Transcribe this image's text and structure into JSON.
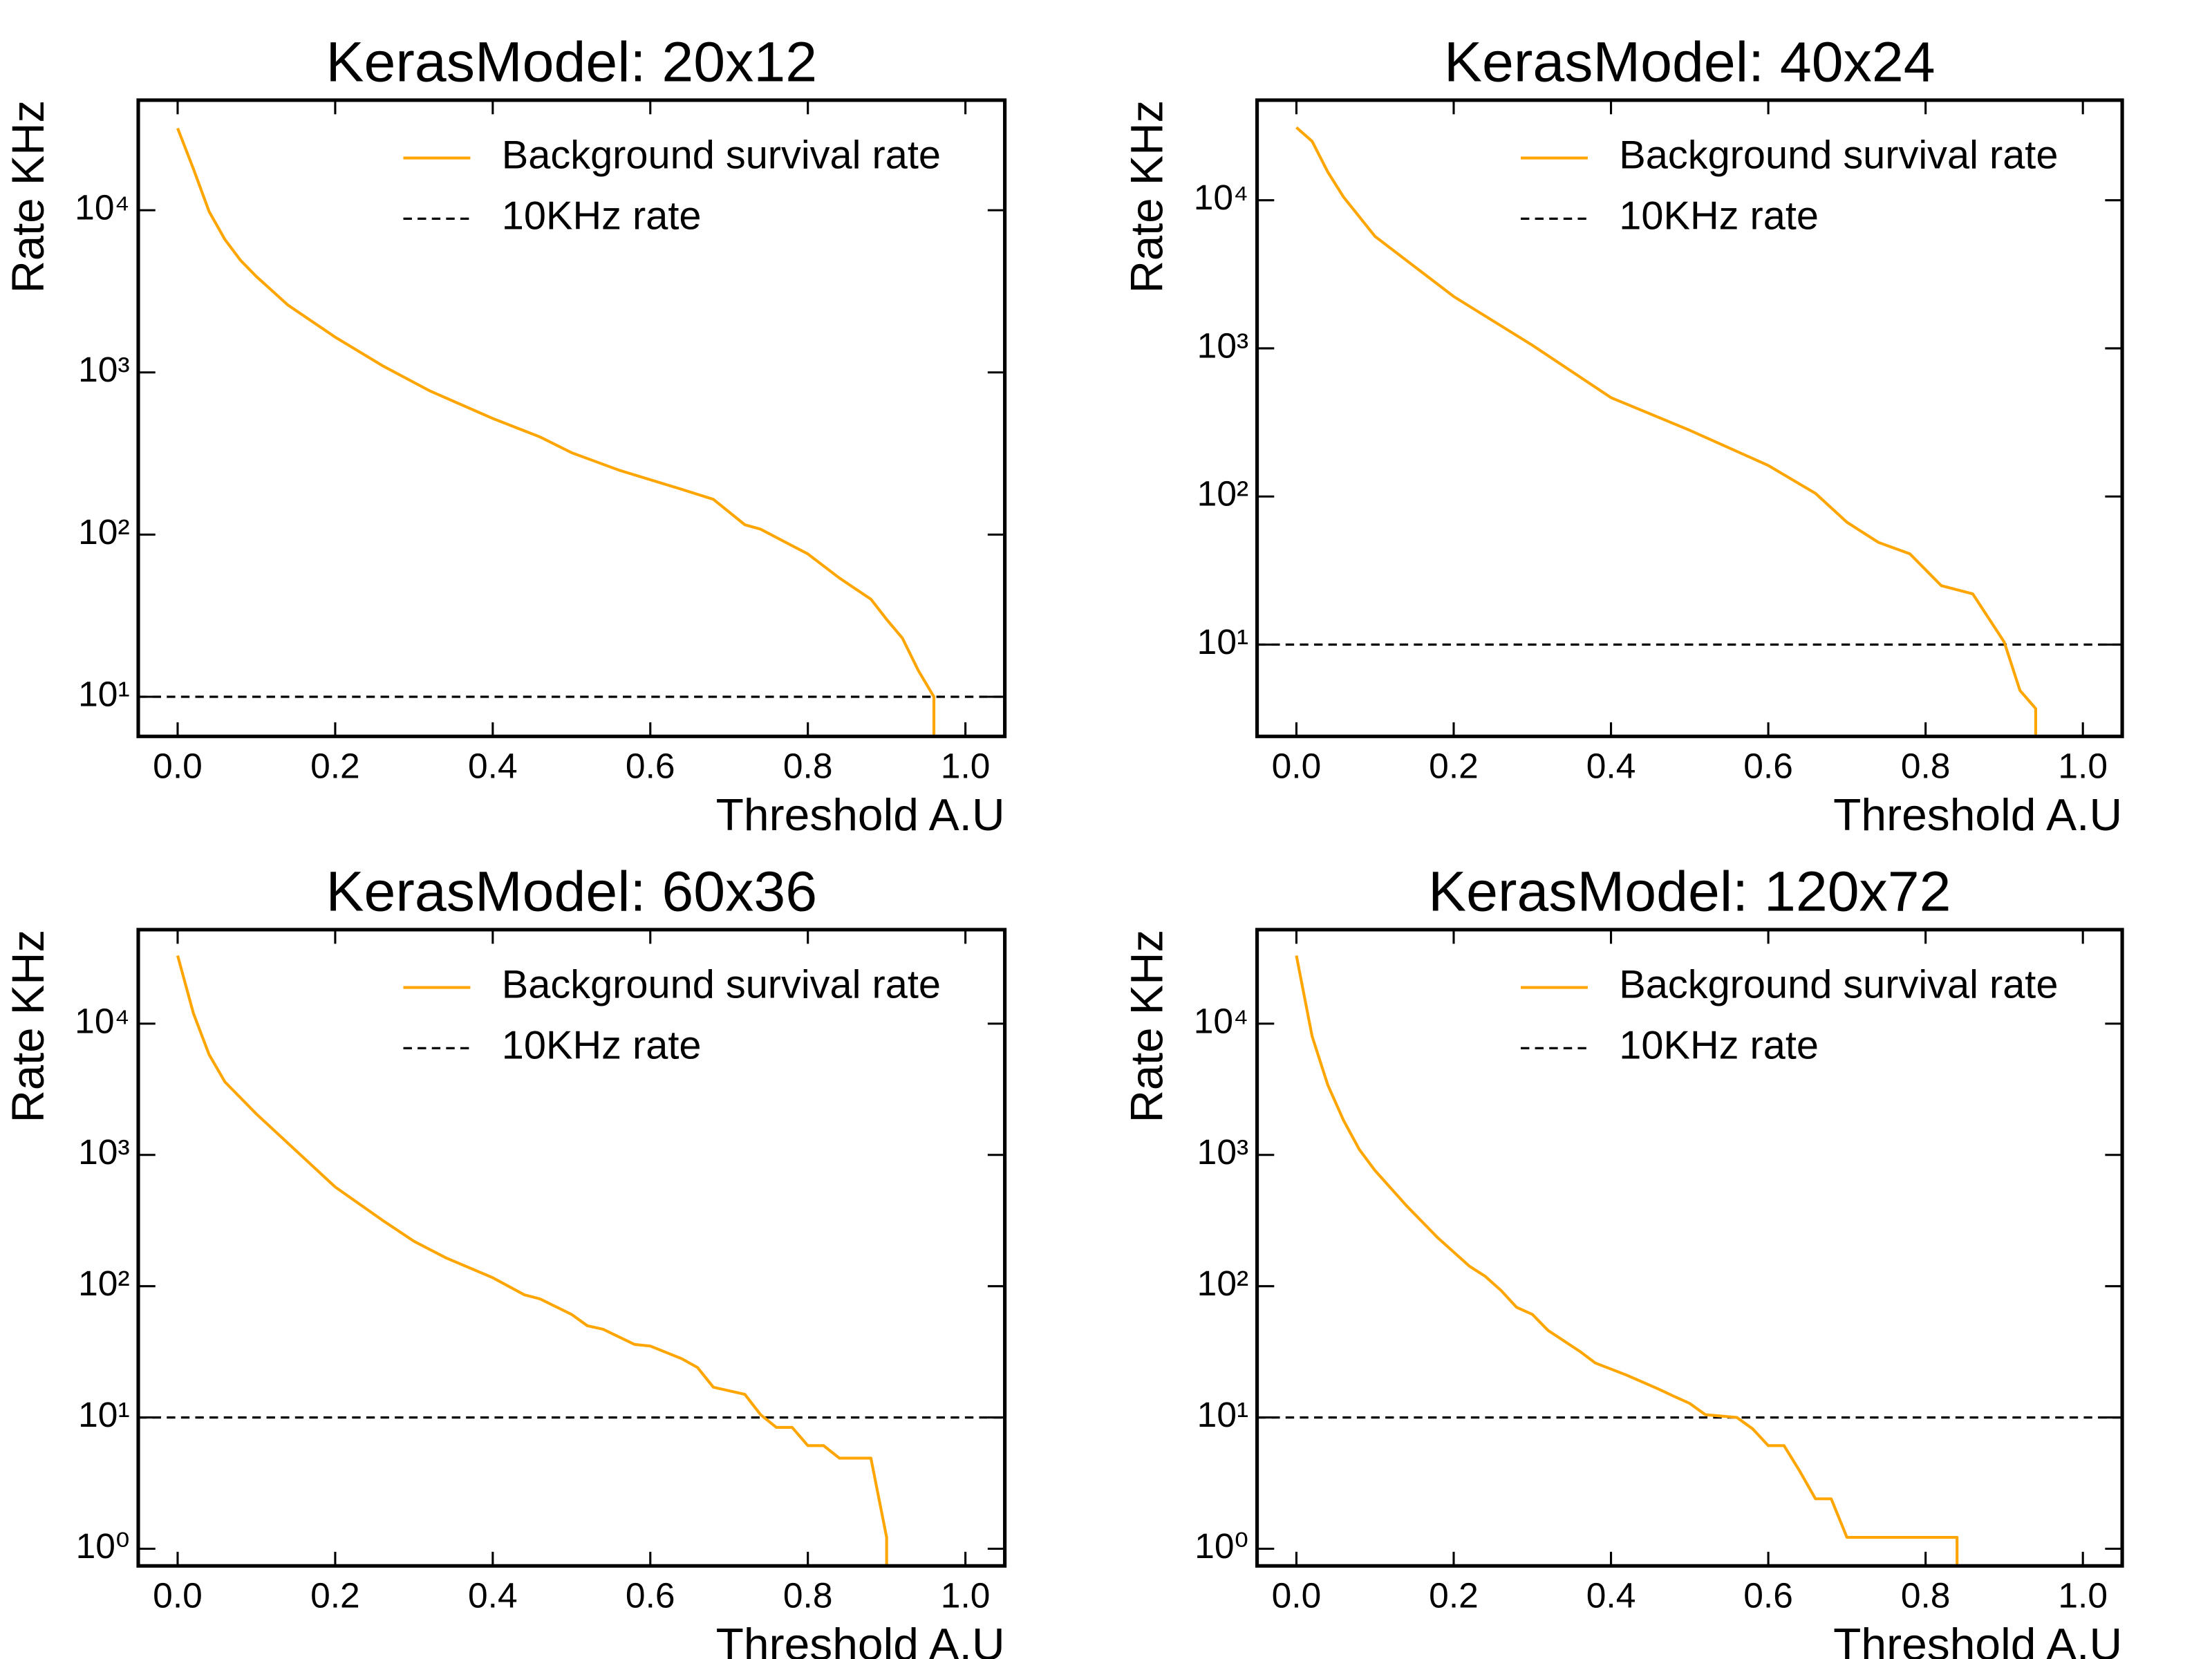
{
  "chart_data": [
    {
      "type": "line",
      "title": "KerasModel: 20x12",
      "xlabel": "Threshold A.U",
      "ylabel": "Rate KHz",
      "yscale": "log",
      "legend": "upper right",
      "xlim": [
        -0.05,
        1.05
      ],
      "ylim": [
        5.7,
        47700
      ],
      "xticks": [
        {
          "value": 0,
          "label": "0.0"
        },
        0.2,
        0.4,
        0.6,
        0.8,
        {
          "value": 1,
          "label": "1.0"
        }
      ],
      "yticks": [
        {
          "value": 10,
          "label": "10¹"
        },
        {
          "value": 100,
          "label": "10²"
        },
        {
          "value": 1000,
          "label": "10³"
        },
        {
          "value": 10000,
          "label": "10⁴"
        }
      ],
      "series": [
        {
          "name": "Background survival rate",
          "color": "#ffa500",
          "x": [
            0,
            0.02,
            0.04,
            0.06,
            0.08,
            0.1,
            0.14,
            0.2,
            0.26,
            0.32,
            0.4,
            0.46,
            0.5,
            0.56,
            0.64,
            0.68,
            0.72,
            0.74,
            0.8,
            0.84,
            0.88,
            0.9,
            0.92,
            0.94,
            0.96,
            0.96
          ],
          "values": [
            32000,
            18000,
            9800,
            6600,
            4900,
            3900,
            2600,
            1650,
            1100,
            770,
            520,
            400,
            320,
            250,
            190,
            165,
            115,
            108,
            76,
            54,
            40,
            30,
            23,
            14.6,
            10,
            1
          ]
        }
      ],
      "hlines": [
        {
          "name": "10KHz rate",
          "value": 10,
          "color": "#000000",
          "linestyle": "dashed"
        }
      ]
    },
    {
      "type": "line",
      "title": "KerasModel: 40x24",
      "xlabel": "Threshold A.U",
      "ylabel": "Rate KHz",
      "yscale": "log",
      "legend": "upper right",
      "xlim": [
        -0.05,
        1.05
      ],
      "ylim": [
        2.4,
        47400
      ],
      "xticks": [
        {
          "value": 0,
          "label": "0.0"
        },
        0.2,
        0.4,
        0.6,
        0.8,
        {
          "value": 1,
          "label": "1.0"
        }
      ],
      "yticks": [
        {
          "value": 10,
          "label": "10¹"
        },
        {
          "value": 100,
          "label": "10²"
        },
        {
          "value": 1000,
          "label": "10³"
        },
        {
          "value": 10000,
          "label": "10⁴"
        }
      ],
      "series": [
        {
          "name": "Background survival rate",
          "color": "#ffa500",
          "x": [
            0,
            0.02,
            0.04,
            0.06,
            0.1,
            0.2,
            0.3,
            0.4,
            0.5,
            0.6,
            0.66,
            0.7,
            0.74,
            0.78,
            0.82,
            0.86,
            0.9,
            0.92,
            0.94,
            0.94
          ],
          "values": [
            31000,
            25000,
            15500,
            10500,
            5700,
            2240,
            1050,
            465,
            280,
            162,
            105,
            67,
            49,
            41,
            25,
            22,
            10.4,
            4.9,
            3.7,
            1
          ]
        }
      ],
      "hlines": [
        {
          "name": "10KHz rate",
          "value": 10,
          "color": "#000000",
          "linestyle": "dashed"
        }
      ]
    },
    {
      "type": "line",
      "title": "KerasModel: 60x36",
      "xlabel": "Threshold A.U",
      "ylabel": "Rate KHz",
      "yscale": "log",
      "legend": "upper right",
      "xlim": [
        -0.05,
        1.05
      ],
      "ylim": [
        0.74,
        52000
      ],
      "xticks": [
        {
          "value": 0,
          "label": "0.0"
        },
        0.2,
        0.4,
        0.6,
        0.8,
        {
          "value": 1,
          "label": "1.0"
        }
      ],
      "yticks": [
        {
          "value": 1,
          "label": "10⁰"
        },
        {
          "value": 10,
          "label": "10¹"
        },
        {
          "value": 100,
          "label": "10²"
        },
        {
          "value": 1000,
          "label": "10³"
        },
        {
          "value": 10000,
          "label": "10⁴"
        }
      ],
      "series": [
        {
          "name": "Background survival rate",
          "color": "#ffa500",
          "x": [
            0,
            0.02,
            0.04,
            0.06,
            0.1,
            0.2,
            0.26,
            0.3,
            0.34,
            0.4,
            0.44,
            0.46,
            0.5,
            0.52,
            0.54,
            0.58,
            0.6,
            0.64,
            0.66,
            0.68,
            0.72,
            0.74,
            0.76,
            0.78,
            0.8,
            0.82,
            0.84,
            0.88,
            0.9,
            0.9
          ],
          "values": [
            33000,
            12000,
            5800,
            3600,
            2050,
            570,
            318,
            220,
            165,
            116,
            86,
            80,
            61,
            50,
            47,
            36,
            35,
            28,
            24,
            17,
            15,
            10.5,
            8.4,
            8.4,
            6.1,
            6.1,
            4.9,
            4.9,
            1.22,
            0.1
          ]
        }
      ],
      "hlines": [
        {
          "name": "10KHz rate",
          "value": 10,
          "color": "#000000",
          "linestyle": "dashed"
        }
      ]
    },
    {
      "type": "line",
      "title": "KerasModel: 120x72",
      "xlabel": "Threshold A.U",
      "ylabel": "Rate KHz",
      "yscale": "log",
      "legend": "upper right",
      "xlim": [
        -0.05,
        1.05
      ],
      "ylim": [
        0.74,
        52000
      ],
      "xticks": [
        {
          "value": 0,
          "label": "0.0"
        },
        0.2,
        0.4,
        0.6,
        0.8,
        {
          "value": 1,
          "label": "1.0"
        }
      ],
      "yticks": [
        {
          "value": 1,
          "label": "10⁰"
        },
        {
          "value": 10,
          "label": "10¹"
        },
        {
          "value": 100,
          "label": "10²"
        },
        {
          "value": 1000,
          "label": "10³"
        },
        {
          "value": 10000,
          "label": "10⁴"
        }
      ],
      "series": [
        {
          "name": "Background survival rate",
          "color": "#ffa500",
          "x": [
            0,
            0.02,
            0.04,
            0.06,
            0.08,
            0.1,
            0.14,
            0.18,
            0.22,
            0.24,
            0.26,
            0.28,
            0.3,
            0.32,
            0.36,
            0.38,
            0.42,
            0.46,
            0.48,
            0.5,
            0.52,
            0.56,
            0.58,
            0.6,
            0.62,
            0.64,
            0.66,
            0.68,
            0.7,
            0.84,
            0.84
          ],
          "values": [
            33000,
            8000,
            3400,
            1830,
            1100,
            760,
            410,
            233,
            142,
            119,
            93,
            69,
            61,
            46,
            32,
            26,
            21,
            16.5,
            14.5,
            12.8,
            10.5,
            10,
            8.2,
            6.1,
            6.1,
            3.9,
            2.4,
            2.4,
            1.22,
            1.22,
            0.1
          ]
        }
      ],
      "hlines": [
        {
          "name": "10KHz rate",
          "value": 10,
          "color": "#000000",
          "linestyle": "dashed"
        }
      ]
    }
  ]
}
